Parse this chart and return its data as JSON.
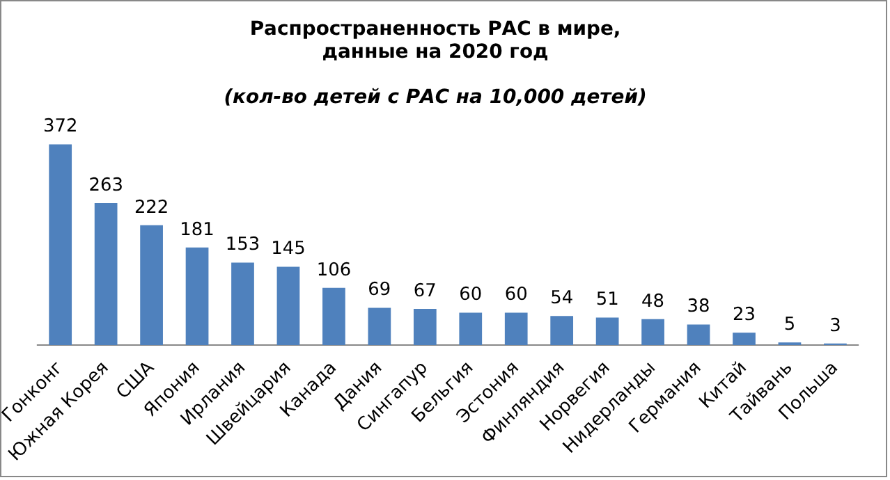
{
  "chart_data": {
    "type": "bar",
    "title": "Распространенность РАС в мире,\nданные на 2020 год",
    "subtitle": "(кол-во детей с РАС на 10,000 детей)",
    "categories": [
      "Гонконг",
      "Южная Корея",
      "США",
      "Япония",
      "Ирлания",
      "Швейцария",
      "Канада",
      "Дания",
      "Сингапур",
      "Бельгия",
      "Эстония",
      "Финляндия",
      "Норвегия",
      "Нидерланды",
      "Германия",
      "Китай",
      "Тайвань",
      "Польша"
    ],
    "values": [
      372,
      263,
      222,
      181,
      153,
      145,
      106,
      69,
      67,
      60,
      60,
      54,
      51,
      48,
      38,
      23,
      5,
      3
    ],
    "color": "#4f81bd",
    "data_labels": true,
    "grid": false,
    "legend": false,
    "tick_labels": "x"
  }
}
